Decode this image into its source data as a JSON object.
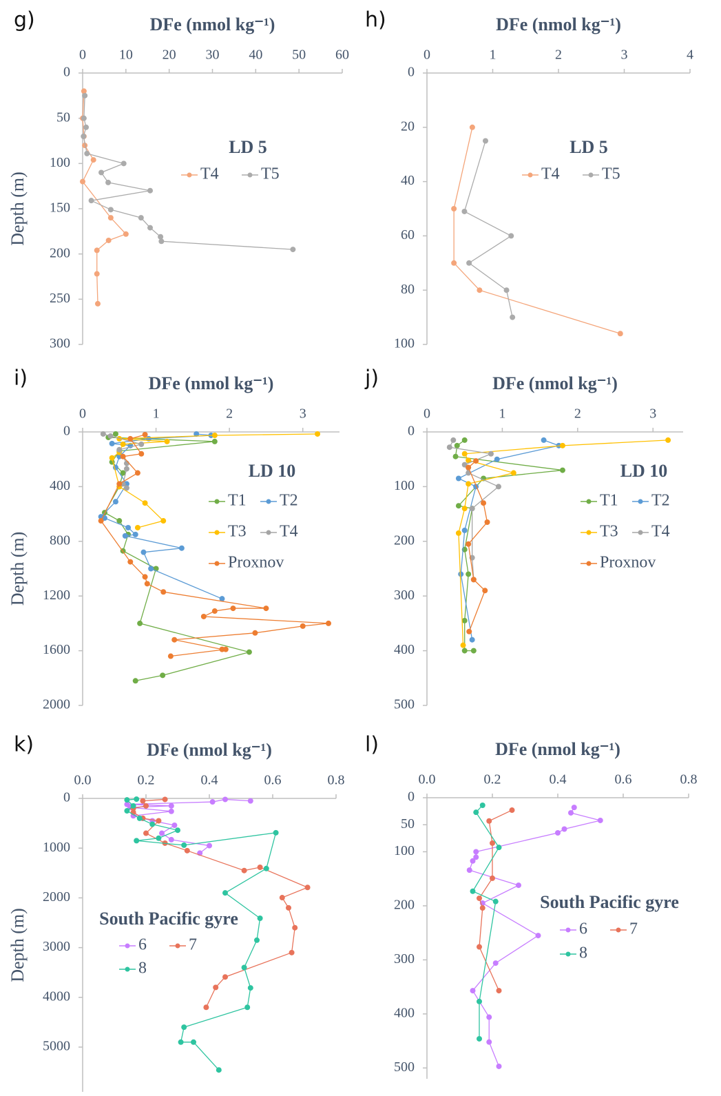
{
  "chart_data": [
    {
      "type": "line",
      "label": "g)",
      "title": "DFe (nmol kg⁻¹)",
      "y_label": "Depth (m)",
      "legend_title": "LD 5",
      "xlim": [
        0,
        60
      ],
      "xticks": [
        0,
        10,
        20,
        30,
        40,
        50,
        60
      ],
      "ylim": [
        0,
        300
      ],
      "yticks": [
        0,
        50,
        100,
        150,
        200,
        250,
        300
      ],
      "series": [
        {
          "name": "T4",
          "color": "#f4a57a",
          "values": [
            0.3,
            0,
            0.3,
            0.5,
            2.5,
            0,
            6.5,
            10,
            6,
            3.3,
            3.3,
            3.5
          ],
          "y": [
            20,
            50,
            70,
            80,
            96,
            120,
            160,
            178,
            185,
            196,
            222,
            255
          ]
        },
        {
          "name": "T5",
          "color": "#ababab",
          "values": [
            0.5,
            0.3,
            0.8,
            0.2,
            1,
            9.5,
            4.3,
            5.9,
            15.6,
            2,
            6.5,
            13.5,
            15.6,
            18,
            18.2,
            48.6
          ],
          "y": [
            25,
            50,
            60,
            70,
            89,
            100,
            110,
            121,
            130,
            141,
            151,
            160,
            171,
            181,
            186,
            195
          ]
        }
      ]
    },
    {
      "type": "line",
      "label": "h)",
      "title": "DFe (nmol kg⁻¹)",
      "legend_title": "LD 5",
      "xlim": [
        0,
        4
      ],
      "xticks": [
        0,
        1,
        2,
        3,
        4
      ],
      "ylim": [
        0,
        100
      ],
      "yticks": [
        0,
        20,
        40,
        60,
        80,
        100
      ],
      "series": [
        {
          "name": "T4",
          "color": "#f4a57a",
          "values": [
            0.69,
            0.41,
            0.41,
            0.8,
            2.94
          ],
          "y": [
            20,
            50,
            70,
            80,
            96
          ]
        },
        {
          "name": "T5",
          "color": "#ababab",
          "values": [
            0.89,
            0.57,
            1.28,
            0.64,
            1.21,
            1.3
          ],
          "y": [
            25,
            51,
            60,
            70,
            80,
            90
          ]
        }
      ]
    },
    {
      "type": "line",
      "label": "i)",
      "title": "DFe (nmol kg⁻¹)",
      "y_label": "Depth (m)",
      "legend_title": "LD 10",
      "xlim": [
        0,
        3.5
      ],
      "xticks": [
        0,
        1,
        2,
        3
      ],
      "ylim": [
        0,
        2000
      ],
      "yticks": [
        0,
        400,
        800,
        1200,
        1600,
        2000
      ],
      "series": [
        {
          "name": "T1",
          "color": "#70ad47",
          "values": [
            0.45,
            0.35,
            1.8,
            0.5,
            0.4,
            0.55,
            0.5,
            0.3,
            0.5,
            0.62,
            0.55,
            1.0,
            0.78,
            2.27,
            1.09,
            0.72
          ],
          "y": [
            15,
            40,
            70,
            140,
            220,
            300,
            400,
            590,
            650,
            750,
            870,
            1000,
            1400,
            1610,
            1780,
            1820
          ]
        },
        {
          "name": "T2",
          "color": "#5b9bd5",
          "values": [
            1.55,
            1.75,
            0.9,
            0.4,
            0.65,
            0.5,
            0.45,
            0.6,
            0.45,
            0.25,
            0.3,
            0.62,
            0.72,
            0.58,
            1.35,
            0.83,
            0.93,
            1.9
          ],
          "y": [
            15,
            25,
            50,
            85,
            100,
            180,
            260,
            380,
            510,
            620,
            630,
            700,
            750,
            760,
            850,
            880,
            1000,
            1220
          ]
        },
        {
          "name": "T3",
          "color": "#ffc000",
          "values": [
            3.2,
            1.8,
            0.5,
            1.15,
            0.55,
            0.5,
            0.4,
            0.5,
            0.85,
            1.1,
            0.75
          ],
          "y": [
            15,
            25,
            50,
            70,
            90,
            150,
            190,
            400,
            520,
            650,
            700
          ]
        },
        {
          "name": "T4",
          "color": "#a5a5a5",
          "values": [
            0.28,
            0.38,
            0.8,
            0.5,
            0.6,
            0.6,
            0.55,
            0.6
          ],
          "y": [
            15,
            30,
            90,
            130,
            230,
            270,
            380,
            410
          ]
        },
        {
          "name": "Proxnov",
          "color": "#ed7d31",
          "values": [
            0.85,
            0.65,
            0.8,
            0.55,
            0.75,
            0.5,
            0.25,
            0.65,
            0.85,
            0.88,
            1.1,
            2.5,
            2.05,
            1.8,
            1.65,
            3.35,
            3.0,
            2.35,
            1.25,
            1.9,
            1.95,
            1.2
          ],
          "y": [
            20,
            50,
            160,
            180,
            300,
            380,
            650,
            950,
            1060,
            1110,
            1170,
            1290,
            1290,
            1310,
            1350,
            1400,
            1420,
            1470,
            1520,
            1590,
            1590,
            1640
          ]
        }
      ]
    },
    {
      "type": "line",
      "label": "j)",
      "title": "DFe (nmol kg⁻¹)",
      "legend_title": "LD 10",
      "xlim": [
        0,
        3.4
      ],
      "xticks": [
        0,
        1,
        2,
        3
      ],
      "ylim": [
        0,
        500
      ],
      "yticks": [
        0,
        100,
        200,
        300,
        400,
        500
      ],
      "series": [
        {
          "name": "T1",
          "color": "#70ad47",
          "values": [
            0.5,
            0.4,
            0.38,
            1.8,
            0.75,
            0.42,
            0.6,
            0.5,
            0.55,
            0.5,
            0.5,
            0.62
          ],
          "y": [
            15,
            25,
            45,
            70,
            85,
            135,
            140,
            215,
            260,
            345,
            400,
            400
          ]
        },
        {
          "name": "T2",
          "color": "#5b9bd5",
          "values": [
            1.55,
            1.75,
            0.93,
            0.42,
            0.65,
            0.5,
            0.45,
            0.6
          ],
          "y": [
            15,
            25,
            50,
            85,
            100,
            180,
            260,
            380
          ]
        },
        {
          "name": "T3",
          "color": "#ffc000",
          "values": [
            3.2,
            1.8,
            0.5,
            0.55,
            1.15,
            0.55,
            0.5,
            0.42,
            0.48
          ],
          "y": [
            15,
            25,
            40,
            52,
            75,
            95,
            140,
            185,
            390
          ]
        },
        {
          "name": "T4",
          "color": "#a5a5a5",
          "values": [
            0.35,
            0.3,
            0.85,
            0.5,
            0.55,
            0.95,
            0.6,
            0.6,
            0.62
          ],
          "y": [
            15,
            28,
            40,
            60,
            75,
            100,
            140,
            230,
            270
          ]
        },
        {
          "name": "Proxnov",
          "color": "#ed7d31",
          "values": [
            0.65,
            0.55,
            0.75,
            0.8,
            0.55,
            0.62,
            0.77,
            0.56
          ],
          "y": [
            53,
            65,
            130,
            165,
            205,
            270,
            290,
            365
          ]
        }
      ]
    },
    {
      "type": "line",
      "label": "k)",
      "title": "DFe (nmol kg⁻¹)",
      "y_label": "Depth (m)",
      "legend_title": "South Pacific gyre",
      "xlim": [
        0,
        0.8
      ],
      "xticks": [
        {
          "value": 0,
          "label": "0.0"
        },
        0.2,
        0.4,
        0.6,
        0.8
      ],
      "ylim": [
        0,
        5900
      ],
      "yticks": [
        0,
        1000,
        2000,
        3000,
        4000,
        5000
      ],
      "series": [
        {
          "name": "6",
          "color": "#c77dff",
          "values": [
            0.53,
            0.45,
            0.41,
            0.14,
            0.28,
            0.15,
            0.28,
            0.16,
            0.19,
            0.22,
            0.29,
            0.25,
            0.28,
            0.4,
            0.37
          ],
          "y": [
            50,
            20,
            70,
            120,
            150,
            180,
            260,
            350,
            400,
            450,
            540,
            700,
            830,
            950,
            1100
          ]
        },
        {
          "name": "7",
          "color": "#e8735a",
          "values": [
            0.26,
            0.19,
            0.2,
            0.16,
            0.16,
            0.19,
            0.24,
            0.2,
            0.26,
            0.33,
            0.51,
            0.56,
            0.71,
            0.63,
            0.65,
            0.67,
            0.66,
            0.45,
            0.42,
            0.39
          ],
          "y": [
            20,
            50,
            150,
            200,
            280,
            400,
            450,
            700,
            900,
            1050,
            1450,
            1385,
            1790,
            1995,
            2200,
            2600,
            3100,
            3590,
            3800,
            4200
          ]
        },
        {
          "name": "8",
          "color": "#2ec4a0",
          "values": [
            0.17,
            0.14,
            0.16,
            0.14,
            0.18,
            0.22,
            0.3,
            0.24,
            0.17,
            0.32,
            0.61,
            0.58,
            0.45,
            0.56,
            0.55,
            0.51,
            0.53,
            0.52,
            0.32,
            0.31,
            0.35,
            0.43
          ],
          "y": [
            15,
            30,
            150,
            250,
            400,
            520,
            640,
            800,
            850,
            940,
            690,
            1410,
            1900,
            2410,
            2850,
            3400,
            3810,
            4200,
            4600,
            4900,
            4900,
            5460
          ]
        }
      ]
    },
    {
      "type": "line",
      "label": "l)",
      "title": "DFe (nmol kg⁻¹)",
      "legend_title": "South Pacific gyre",
      "xlim": [
        0,
        0.8
      ],
      "xticks": [
        {
          "value": 0,
          "label": "0.0"
        },
        0.2,
        0.4,
        0.6,
        0.8
      ],
      "ylim": [
        0,
        520
      ],
      "yticks": [
        0,
        50,
        100,
        200,
        300,
        400,
        500
      ],
      "series": [
        {
          "name": "6",
          "color": "#c77dff",
          "values": [
            0.45,
            0.44,
            0.53,
            0.42,
            0.4,
            0.15,
            0.15,
            0.14,
            0.13,
            0.28,
            0.17,
            0.34,
            0.21,
            0.14,
            0.19,
            0.19,
            0.22
          ],
          "y": [
            18,
            28,
            42,
            58,
            65,
            100,
            110,
            117,
            134,
            162,
            195,
            255,
            306,
            357,
            406,
            452,
            497
          ]
        },
        {
          "name": "7",
          "color": "#e8735a",
          "values": [
            0.26,
            0.19,
            0.2,
            0.2,
            0.16,
            0.17,
            0.16,
            0.22
          ],
          "y": [
            23,
            43,
            84,
            149,
            186,
            204,
            276,
            357
          ]
        },
        {
          "name": "8",
          "color": "#2ec4a0",
          "values": [
            0.17,
            0.15,
            0.22,
            0.14,
            0.21,
            0.16,
            0.16
          ],
          "y": [
            14,
            27,
            92,
            173,
            192,
            377,
            446
          ]
        }
      ]
    }
  ]
}
